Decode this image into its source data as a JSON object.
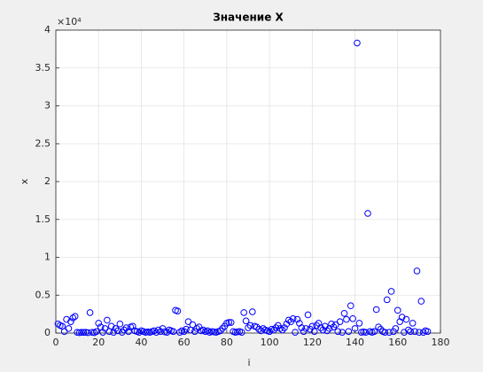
{
  "chart_data": {
    "type": "scatter",
    "title": "Значение X",
    "x_label": "i",
    "y_label": "x",
    "y_multiplier": "×10⁴",
    "color": "#0000ff",
    "grid": true,
    "xlim": [
      0,
      180
    ],
    "xticks": [
      0,
      20,
      40,
      60,
      80,
      100,
      120,
      140,
      160,
      180
    ],
    "ylim": [
      0,
      40000
    ],
    "yticks": [
      0,
      {
        "value": 5000,
        "label": "0.5"
      },
      {
        "value": 10000,
        "label": "1"
      },
      {
        "value": 15000,
        "label": "1.5"
      },
      {
        "value": 20000,
        "label": "2"
      },
      {
        "value": 25000,
        "label": "2.5"
      },
      {
        "value": 30000,
        "label": "3"
      },
      {
        "value": 35000,
        "label": "3.5"
      },
      {
        "value": 40000,
        "label": "4"
      }
    ],
    "x": [
      1,
      2,
      3,
      4,
      5,
      6,
      7,
      8,
      9,
      10,
      11,
      12,
      13,
      14,
      15,
      16,
      17,
      18,
      19,
      20,
      21,
      22,
      23,
      24,
      25,
      26,
      27,
      28,
      29,
      30,
      31,
      32,
      33,
      34,
      35,
      36,
      37,
      38,
      39,
      40,
      41,
      42,
      43,
      44,
      45,
      46,
      47,
      48,
      49,
      50,
      51,
      52,
      53,
      54,
      55,
      56,
      57,
      58,
      59,
      60,
      61,
      62,
      63,
      64,
      65,
      66,
      67,
      68,
      69,
      70,
      71,
      72,
      73,
      74,
      75,
      76,
      77,
      78,
      79,
      80,
      81,
      82,
      83,
      84,
      85,
      86,
      87,
      88,
      89,
      90,
      91,
      92,
      93,
      94,
      95,
      96,
      97,
      98,
      99,
      100,
      101,
      102,
      103,
      104,
      105,
      106,
      107,
      108,
      109,
      110,
      111,
      112,
      113,
      114,
      115,
      116,
      117,
      118,
      119,
      120,
      121,
      122,
      123,
      124,
      125,
      126,
      127,
      128,
      129,
      130,
      131,
      132,
      133,
      134,
      135,
      136,
      137,
      138,
      139,
      140,
      141,
      142,
      143,
      144,
      145,
      146,
      147,
      148,
      149,
      150,
      151,
      152,
      153,
      154,
      155,
      156,
      157,
      158,
      159,
      160,
      161,
      162,
      163,
      164,
      165,
      166,
      167,
      168,
      169,
      170,
      171,
      172,
      173,
      174
    ],
    "values": [
      1200,
      1000,
      900,
      200,
      1800,
      600,
      1500,
      2000,
      2200,
      100,
      50,
      100,
      80,
      100,
      50,
      2700,
      100,
      50,
      200,
      1300,
      800,
      100,
      600,
      1700,
      200,
      900,
      100,
      600,
      300,
      1200,
      100,
      400,
      700,
      200,
      800,
      900,
      300,
      200,
      100,
      300,
      200,
      100,
      150,
      100,
      200,
      300,
      100,
      400,
      200,
      600,
      150,
      100,
      400,
      300,
      200,
      3000,
      2900,
      100,
      300,
      200,
      500,
      1500,
      400,
      1100,
      200,
      600,
      800,
      300,
      400,
      200,
      300,
      100,
      200,
      150,
      100,
      200,
      300,
      600,
      900,
      1300,
      1400,
      1400,
      200,
      100,
      150,
      200,
      100,
      2700,
      1600,
      700,
      1000,
      2800,
      900,
      800,
      500,
      300,
      600,
      400,
      300,
      200,
      500,
      400,
      700,
      1000,
      600,
      400,
      700,
      1200,
      1700,
      1500,
      1900,
      100,
      1800,
      1300,
      700,
      200,
      600,
      2400,
      500,
      900,
      200,
      1000,
      1300,
      700,
      400,
      900,
      300,
      600,
      1200,
      800,
      1100,
      200,
      1500,
      100,
      2600,
      1800,
      200,
      3600,
      1900,
      600,
      38300,
      1300,
      100,
      150,
      100,
      15800,
      200,
      100,
      200,
      3100,
      800,
      500,
      200,
      100,
      4400,
      100,
      5500,
      200,
      600,
      3000,
      1500,
      2100,
      100,
      1800,
      400,
      200,
      1300,
      200,
      8200,
      100,
      4200,
      100,
      300,
      200
    ]
  }
}
